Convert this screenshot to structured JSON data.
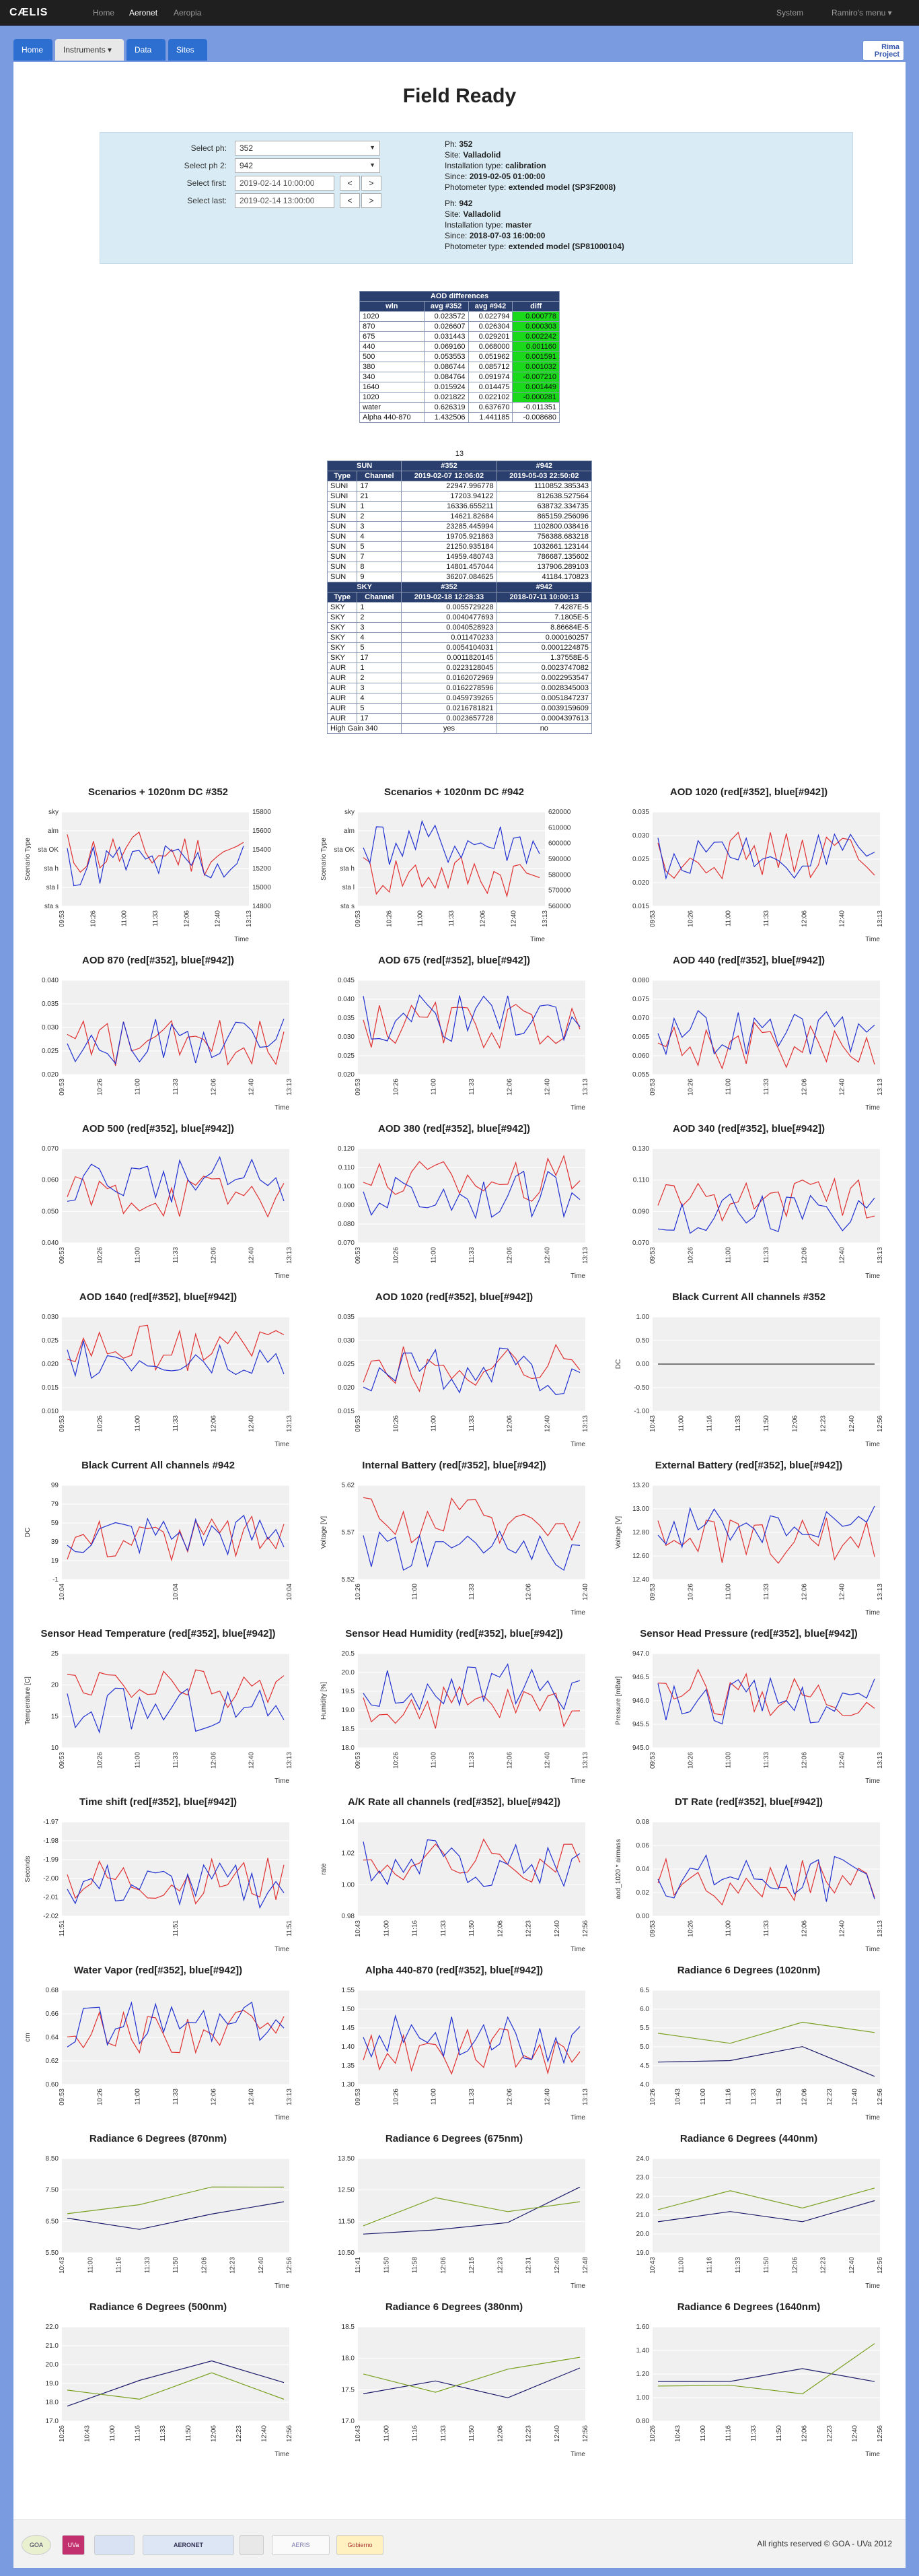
{
  "nav": {
    "brand": "CÆLIS",
    "home": "Home",
    "aeronet": "Aeronet",
    "aeropia": "Aeropia",
    "system": "System",
    "user": "Ramiro's menu ▾"
  },
  "tabs": [
    {
      "label": "Home"
    },
    {
      "label": "Instruments ▾"
    },
    {
      "label": "Data"
    },
    {
      "label": "Sites"
    }
  ],
  "logo": {
    "line1": "Rima",
    "line2": "Project"
  },
  "page_title": "Field Ready",
  "form": {
    "ph_label": "Select ph:",
    "ph_value": "352",
    "ph2_label": "Select ph 2:",
    "ph2_value": "942",
    "first_label": "Select first:",
    "first_value": "2019-02-14 10:00:00",
    "last_label": "Select last:",
    "last_value": "2019-02-14 13:00:00",
    "prev": "<",
    "next": ">"
  },
  "info1": {
    "ph_k": "Ph:",
    "ph_v": "352",
    "site_k": "Site:",
    "site_v": "Valladolid",
    "inst_k": "Installation type:",
    "inst_v": "calibration",
    "since_k": "Since:",
    "since_v": "2019-02-05 01:00:00",
    "type_k": "Photometer type:",
    "type_v": "extended model (SP3F2008)"
  },
  "info2": {
    "ph_k": "Ph:",
    "ph_v": "942",
    "site_k": "Site:",
    "site_v": "Valladolid",
    "inst_k": "Installation type:",
    "inst_v": "master",
    "since_k": "Since:",
    "since_v": "2018-07-03 16:00:00",
    "type_k": "Photometer type:",
    "type_v": "extended model (SP81000104)"
  },
  "aod_table": {
    "title": "AOD differences",
    "headers": [
      "wln",
      "avg #352",
      "avg #942",
      "diff"
    ],
    "rows": [
      [
        "1020",
        "0.023572",
        "0.022794",
        "0.000778",
        true
      ],
      [
        "870",
        "0.026607",
        "0.026304",
        "0.000303",
        true
      ],
      [
        "675",
        "0.031443",
        "0.029201",
        "0.002242",
        true
      ],
      [
        "440",
        "0.069160",
        "0.068000",
        "0.001160",
        true
      ],
      [
        "500",
        "0.053553",
        "0.051962",
        "0.001591",
        true
      ],
      [
        "380",
        "0.086744",
        "0.085712",
        "0.001032",
        true
      ],
      [
        "340",
        "0.084764",
        "0.091974",
        "-0.007210",
        true
      ],
      [
        "1640",
        "0.015924",
        "0.014475",
        "0.001449",
        true
      ],
      [
        "1020",
        "0.021822",
        "0.022102",
        "-0.000281",
        true
      ],
      [
        "water",
        "0.626319",
        "0.637670",
        "-0.011351",
        false
      ],
      [
        "Alpha 440-870",
        "1.432506",
        "1.441185",
        "-0.008680",
        false
      ]
    ],
    "footer": "13"
  },
  "sun_table": {
    "title": "SUN",
    "h352": "#352",
    "h942": "#942",
    "headers": [
      "Type",
      "Channel",
      "2019-02-07 12:06:02",
      "2019-05-03 22:50:02"
    ],
    "rows": [
      [
        "SUNI",
        "17",
        "22947.996778",
        "1110852.385343"
      ],
      [
        "SUNI",
        "21",
        "17203.94122",
        "812638.527564"
      ],
      [
        "SUN",
        "1",
        "16336.655211",
        "638732.334735"
      ],
      [
        "SUN",
        "2",
        "14621.82684",
        "865159.256096"
      ],
      [
        "SUN",
        "3",
        "23285.445994",
        "1102800.038416"
      ],
      [
        "SUN",
        "4",
        "19705.921863",
        "756388.683218"
      ],
      [
        "SUN",
        "5",
        "21250.935184",
        "1032661.123144"
      ],
      [
        "SUN",
        "7",
        "14959.480743",
        "786687.135602"
      ],
      [
        "SUN",
        "8",
        "14801.457044",
        "137906.289103"
      ],
      [
        "SUN",
        "9",
        "36207.084625",
        "41184.170823"
      ]
    ]
  },
  "sky_table": {
    "title": "SKY",
    "h352": "#352",
    "h942": "#942",
    "headers": [
      "Type",
      "Channel",
      "2019-02-18 12:28:33",
      "2018-07-11 10:00:13"
    ],
    "rows": [
      [
        "SKY",
        "1",
        "0.0055729228",
        "7.4287E-5"
      ],
      [
        "SKY",
        "2",
        "0.0040477693",
        "7.1805E-5"
      ],
      [
        "SKY",
        "3",
        "0.0040528923",
        "8.86684E-5"
      ],
      [
        "SKY",
        "4",
        "0.011470233",
        "0.000160257"
      ],
      [
        "SKY",
        "5",
        "0.0054104031",
        "0.0001224875"
      ],
      [
        "SKY",
        "17",
        "0.0011820145",
        "1.37558E-5"
      ],
      [
        "AUR",
        "1",
        "0.0223128045",
        "0.0023747082"
      ],
      [
        "AUR",
        "2",
        "0.0162072969",
        "0.0022953547"
      ],
      [
        "AUR",
        "3",
        "0.0162278596",
        "0.0028345003"
      ],
      [
        "AUR",
        "4",
        "0.0459739265",
        "0.0051847237"
      ],
      [
        "AUR",
        "5",
        "0.0216781821",
        "0.0039159609"
      ],
      [
        "AUR",
        "17",
        "0.0023657728",
        "0.0004397613"
      ]
    ],
    "gain_label": "High Gain 340",
    "gain_352": "yes",
    "gain_942": "no"
  },
  "charts": [
    {
      "title": "Scenarios + 1020nm DC #352",
      "ylabel": "Scenario Type",
      "xlabel": "Time",
      "yticks": [
        "sky",
        "alm",
        "sta OK",
        "sta h",
        "sta l",
        "sta s"
      ],
      "y2ticks": [
        "15800",
        "15600",
        "15400",
        "15200",
        "15000",
        "14800"
      ],
      "xticks": [
        "09:53",
        "10:26",
        "11:00",
        "11:33",
        "12:06",
        "12:40",
        "13:13"
      ]
    },
    {
      "title": "Scenarios + 1020nm DC #942",
      "ylabel": "Scenario Type",
      "xlabel": "Time",
      "yticks": [
        "sky",
        "alm",
        "sta OK",
        "sta h",
        "sta l",
        "sta s"
      ],
      "y2ticks": [
        "620000",
        "610000",
        "600000",
        "590000",
        "580000",
        "570000",
        "560000"
      ],
      "xticks": [
        "09:53",
        "10:26",
        "11:00",
        "11:33",
        "12:06",
        "12:40",
        "13:13"
      ]
    },
    {
      "title": "AOD 1020 (red[#352], blue[#942])",
      "yticks": [
        "0.035",
        "0.030",
        "0.025",
        "0.020",
        "0.015"
      ],
      "xlabel": "Time",
      "xticks": [
        "09:53",
        "10:26",
        "11:00",
        "11:33",
        "12:06",
        "12:40",
        "13:13"
      ]
    },
    {
      "title": "AOD 870 (red[#352], blue[#942])",
      "yticks": [
        "0.040",
        "0.035",
        "0.030",
        "0.025",
        "0.020"
      ],
      "xlabel": "Time",
      "xticks": [
        "09:53",
        "10:26",
        "11:00",
        "11:33",
        "12:06",
        "12:40",
        "13:13"
      ]
    },
    {
      "title": "AOD 675 (red[#352], blue[#942])",
      "yticks": [
        "0.045",
        "0.040",
        "0.035",
        "0.030",
        "0.025",
        "0.020"
      ],
      "xlabel": "Time",
      "xticks": [
        "09:53",
        "10:26",
        "11:00",
        "11:33",
        "12:06",
        "12:40",
        "13:13"
      ]
    },
    {
      "title": "AOD 440 (red[#352], blue[#942])",
      "yticks": [
        "0.080",
        "0.075",
        "0.070",
        "0.065",
        "0.060",
        "0.055"
      ],
      "xlabel": "Time",
      "xticks": [
        "09:53",
        "10:26",
        "11:00",
        "11:33",
        "12:06",
        "12:40",
        "13:13"
      ]
    },
    {
      "title": "AOD 500 (red[#352], blue[#942])",
      "yticks": [
        "0.070",
        "0.060",
        "0.050",
        "0.040"
      ],
      "xlabel": "Time",
      "xticks": [
        "09:53",
        "10:26",
        "11:00",
        "11:33",
        "12:06",
        "12:40",
        "13:13"
      ]
    },
    {
      "title": "AOD 380 (red[#352], blue[#942])",
      "yticks": [
        "0.120",
        "0.110",
        "0.100",
        "0.090",
        "0.080",
        "0.070"
      ],
      "xlabel": "Time",
      "xticks": [
        "09:53",
        "10:26",
        "11:00",
        "11:33",
        "12:06",
        "12:40",
        "13:13"
      ]
    },
    {
      "title": "AOD 340 (red[#352], blue[#942])",
      "yticks": [
        "0.130",
        "0.110",
        "0.090",
        "0.070"
      ],
      "xlabel": "Time",
      "xticks": [
        "09:53",
        "10:26",
        "11:00",
        "11:33",
        "12:06",
        "12:40",
        "13:13"
      ]
    },
    {
      "title": "AOD 1640 (red[#352], blue[#942])",
      "yticks": [
        "0.030",
        "0.025",
        "0.020",
        "0.015",
        "0.010"
      ],
      "xlabel": "Time",
      "xticks": [
        "09:53",
        "10:26",
        "11:00",
        "11:33",
        "12:06",
        "12:40",
        "13:13"
      ]
    },
    {
      "title": "AOD 1020 (red[#352], blue[#942])",
      "yticks": [
        "0.035",
        "0.030",
        "0.025",
        "0.020",
        "0.015"
      ],
      "xlabel": "Time",
      "xticks": [
        "09:53",
        "10:26",
        "11:00",
        "11:33",
        "12:06",
        "12:40",
        "13:13"
      ]
    },
    {
      "title": "Black Current All channels #352",
      "ylabel": "DC",
      "yticks": [
        "1.00",
        "0.50",
        "0.00",
        "-0.50",
        "-1.00"
      ],
      "xlabel": "Time",
      "xticks": [
        "10:43",
        "11:00",
        "11:16",
        "11:33",
        "11:50",
        "12:06",
        "12:23",
        "12:40",
        "12:56"
      ]
    },
    {
      "title": "Black Current All channels #942",
      "ylabel": "DC",
      "yticks": [
        "99",
        "79",
        "59",
        "39",
        "19",
        "-1"
      ],
      "xlabel": "",
      "xticks": [
        "10:04",
        "10:04",
        "10:04"
      ]
    },
    {
      "title": "Internal Battery (red[#352], blue[#942])",
      "ylabel": "Voltage [V]",
      "yticks": [
        "5.62",
        "5.57",
        "5.52"
      ],
      "xlabel": "Time",
      "xticks": [
        "10:26",
        "11:00",
        "11:33",
        "12:06",
        "12:40"
      ]
    },
    {
      "title": "External Battery (red[#352], blue[#942])",
      "ylabel": "Voltage [V]",
      "yticks": [
        "13.20",
        "13.00",
        "12.80",
        "12.60",
        "12.40"
      ],
      "xlabel": "Time",
      "xticks": [
        "09:53",
        "10:26",
        "11:00",
        "11:33",
        "12:06",
        "12:40",
        "13:13"
      ]
    },
    {
      "title": "Sensor Head Temperature (red[#352], blue[#942])",
      "ylabel": "Temperature [C]",
      "yticks": [
        "25",
        "20",
        "15",
        "10"
      ],
      "xlabel": "Time",
      "xticks": [
        "09:53",
        "10:26",
        "11:00",
        "11:33",
        "12:06",
        "12:40",
        "13:13"
      ]
    },
    {
      "title": "Sensor Head Humidity (red[#352], blue[#942])",
      "ylabel": "Humidity [%]",
      "yticks": [
        "20.5",
        "20.0",
        "19.5",
        "19.0",
        "18.5",
        "18.0"
      ],
      "xlabel": "Time",
      "xticks": [
        "09:53",
        "10:26",
        "11:00",
        "11:33",
        "12:06",
        "12:40",
        "13:13"
      ]
    },
    {
      "title": "Sensor Head Pressure (red[#352], blue[#942])",
      "ylabel": "Pressure [mBar]",
      "yticks": [
        "947.0",
        "946.5",
        "946.0",
        "945.5",
        "945.0"
      ],
      "xlabel": "Time",
      "xticks": [
        "09:53",
        "10:26",
        "11:00",
        "11:33",
        "12:06",
        "12:40",
        "13:13"
      ]
    },
    {
      "title": "Time shift (red[#352], blue[#942])",
      "ylabel": "Seconds",
      "yticks": [
        "-1.97",
        "-1.98",
        "-1.99",
        "-2.00",
        "-2.01",
        "-2.02"
      ],
      "xlabel": "Time",
      "xticks": [
        "11:51",
        "11:51",
        "11:51"
      ]
    },
    {
      "title": "A/K Rate all channels (red[#352], blue[#942])",
      "ylabel": "rate",
      "yticks": [
        "1.04",
        "1.02",
        "1.00",
        "0.98"
      ],
      "xlabel": "Time",
      "xticks": [
        "10:43",
        "11:00",
        "11:16",
        "11:33",
        "11:50",
        "12:06",
        "12:23",
        "12:40",
        "12:56"
      ]
    },
    {
      "title": "DT Rate (red[#352], blue[#942])",
      "ylabel": "aod_1020 * airmass",
      "yticks": [
        "0.08",
        "0.06",
        "0.04",
        "0.02",
        "0.00"
      ],
      "xlabel": "Time",
      "xticks": [
        "09:53",
        "10:26",
        "11:00",
        "11:33",
        "12:06",
        "12:40",
        "13:13"
      ]
    },
    {
      "title": "Water Vapor (red[#352], blue[#942])",
      "ylabel": "cm",
      "yticks": [
        "0.68",
        "0.66",
        "0.64",
        "0.62",
        "0.60"
      ],
      "xlabel": "Time",
      "xticks": [
        "09:53",
        "10:26",
        "11:00",
        "11:33",
        "12:06",
        "12:40",
        "13:13"
      ]
    },
    {
      "title": "Alpha 440-870 (red[#352], blue[#942])",
      "yticks": [
        "1.55",
        "1.50",
        "1.45",
        "1.40",
        "1.35",
        "1.30"
      ],
      "xlabel": "Time",
      "xticks": [
        "09:53",
        "10:26",
        "11:00",
        "11:33",
        "12:06",
        "12:40",
        "13:13"
      ]
    },
    {
      "title": "Radiance 6 Degrees (1020nm)",
      "yticks": [
        "6.5",
        "6.0",
        "5.5",
        "5.0",
        "4.5",
        "4.0"
      ],
      "xlabel": "Time",
      "xticks": [
        "10:26",
        "10:43",
        "11:00",
        "11:16",
        "11:33",
        "11:50",
        "12:06",
        "12:23",
        "12:40",
        "12:56"
      ]
    },
    {
      "title": "Radiance 6 Degrees (870nm)",
      "yticks": [
        "8.50",
        "7.50",
        "6.50",
        "5.50"
      ],
      "xlabel": "Time",
      "xticks": [
        "10:43",
        "11:00",
        "11:16",
        "11:33",
        "11:50",
        "12:06",
        "12:23",
        "12:40",
        "12:56"
      ]
    },
    {
      "title": "Radiance 6 Degrees (675nm)",
      "yticks": [
        "13.50",
        "12.50",
        "11.50",
        "10.50"
      ],
      "xlabel": "Time",
      "xticks": [
        "11:41",
        "11:50",
        "11:58",
        "12:06",
        "12:15",
        "12:23",
        "12:31",
        "12:40",
        "12:48"
      ]
    },
    {
      "title": "Radiance 6 Degrees (440nm)",
      "yticks": [
        "24.0",
        "23.0",
        "22.0",
        "21.0",
        "20.0",
        "19.0"
      ],
      "xlabel": "Time",
      "xticks": [
        "10:43",
        "11:00",
        "11:16",
        "11:33",
        "11:50",
        "12:06",
        "12:23",
        "12:40",
        "12:56"
      ]
    },
    {
      "title": "Radiance 6 Degrees (500nm)",
      "yticks": [
        "22.0",
        "21.0",
        "20.0",
        "19.0",
        "18.0",
        "17.0"
      ],
      "xlabel": "Time",
      "xticks": [
        "10:26",
        "10:43",
        "11:00",
        "11:16",
        "11:33",
        "11:50",
        "12:06",
        "12:23",
        "12:40",
        "12:56"
      ]
    },
    {
      "title": "Radiance 6 Degrees (380nm)",
      "yticks": [
        "18.5",
        "18.0",
        "17.5",
        "17.0"
      ],
      "xlabel": "Time",
      "xticks": [
        "10:43",
        "11:00",
        "11:16",
        "11:33",
        "11:50",
        "12:06",
        "12:23",
        "12:40",
        "12:56"
      ]
    },
    {
      "title": "Radiance 6 Degrees (1640nm)",
      "yticks": [
        "1.60",
        "1.40",
        "1.20",
        "1.00",
        "0.80"
      ],
      "xlabel": "Time",
      "xticks": [
        "10:26",
        "10:43",
        "11:00",
        "11:16",
        "11:33",
        "11:50",
        "12:06",
        "12:23",
        "12:40",
        "12:56"
      ]
    }
  ],
  "footer": {
    "logos": [
      "UVa",
      "GOA",
      "AERONET",
      "",
      "AERIS",
      "Gobierno"
    ],
    "copyright": "All rights reserved © GOA - UVa 2012"
  }
}
